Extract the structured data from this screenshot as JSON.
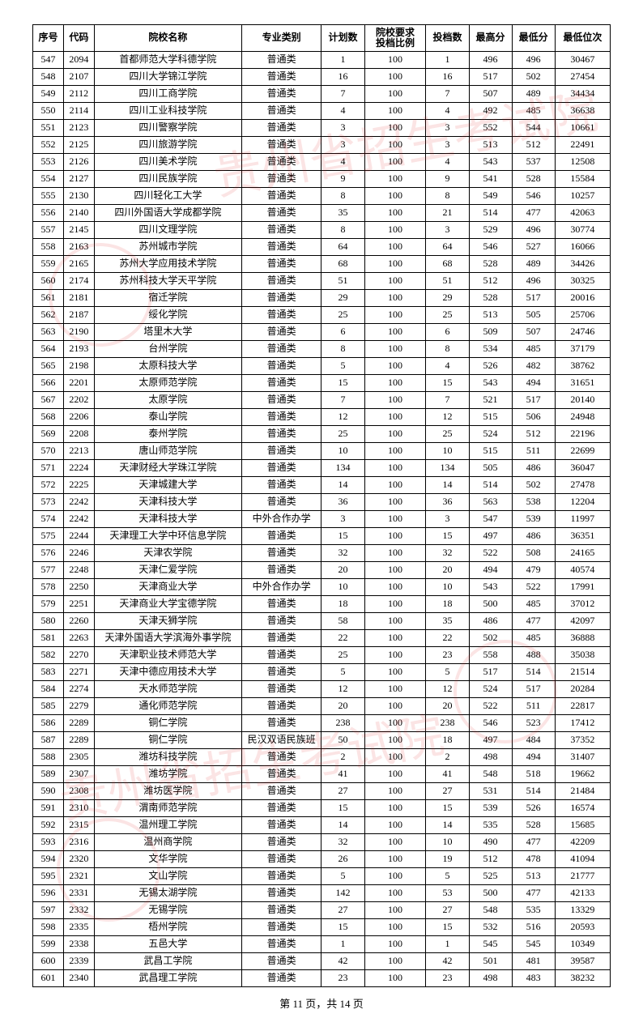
{
  "columns": [
    {
      "label": "序号",
      "width": "5%"
    },
    {
      "label": "代码",
      "width": "5%"
    },
    {
      "label": "院校名称",
      "width": "24%"
    },
    {
      "label": "专业类别",
      "width": "13%"
    },
    {
      "label": "计划数",
      "width": "7%"
    },
    {
      "label": "院校要求\n投档比例",
      "width": "10%"
    },
    {
      "label": "投档数",
      "width": "7%"
    },
    {
      "label": "最高分",
      "width": "7%"
    },
    {
      "label": "最低分",
      "width": "7%"
    },
    {
      "label": "最低位次",
      "width": "9%"
    }
  ],
  "rows": [
    [
      "547",
      "2094",
      "首都师范大学科德学院",
      "普通类",
      "1",
      "100",
      "1",
      "496",
      "496",
      "30467"
    ],
    [
      "548",
      "2107",
      "四川大学锦江学院",
      "普通类",
      "16",
      "100",
      "16",
      "517",
      "502",
      "27454"
    ],
    [
      "549",
      "2112",
      "四川工商学院",
      "普通类",
      "7",
      "100",
      "7",
      "507",
      "489",
      "34434"
    ],
    [
      "550",
      "2114",
      "四川工业科技学院",
      "普通类",
      "4",
      "100",
      "4",
      "492",
      "485",
      "36638"
    ],
    [
      "551",
      "2123",
      "四川警察学院",
      "普通类",
      "3",
      "100",
      "3",
      "552",
      "544",
      "10661"
    ],
    [
      "552",
      "2125",
      "四川旅游学院",
      "普通类",
      "3",
      "100",
      "3",
      "513",
      "512",
      "22491"
    ],
    [
      "553",
      "2126",
      "四川美术学院",
      "普通类",
      "4",
      "100",
      "4",
      "543",
      "537",
      "12508"
    ],
    [
      "554",
      "2127",
      "四川民族学院",
      "普通类",
      "9",
      "100",
      "9",
      "541",
      "528",
      "15584"
    ],
    [
      "555",
      "2130",
      "四川轻化工大学",
      "普通类",
      "8",
      "100",
      "8",
      "549",
      "546",
      "10257"
    ],
    [
      "556",
      "2140",
      "四川外国语大学成都学院",
      "普通类",
      "35",
      "100",
      "21",
      "514",
      "477",
      "42063"
    ],
    [
      "557",
      "2145",
      "四川文理学院",
      "普通类",
      "8",
      "100",
      "3",
      "529",
      "496",
      "30774"
    ],
    [
      "558",
      "2163",
      "苏州城市学院",
      "普通类",
      "64",
      "100",
      "64",
      "546",
      "527",
      "16066"
    ],
    [
      "559",
      "2165",
      "苏州大学应用技术学院",
      "普通类",
      "68",
      "100",
      "68",
      "528",
      "489",
      "34426"
    ],
    [
      "560",
      "2174",
      "苏州科技大学天平学院",
      "普通类",
      "51",
      "100",
      "51",
      "512",
      "496",
      "30325"
    ],
    [
      "561",
      "2181",
      "宿迁学院",
      "普通类",
      "29",
      "100",
      "29",
      "528",
      "517",
      "20016"
    ],
    [
      "562",
      "2187",
      "绥化学院",
      "普通类",
      "25",
      "100",
      "25",
      "513",
      "505",
      "25706"
    ],
    [
      "563",
      "2190",
      "塔里木大学",
      "普通类",
      "6",
      "100",
      "6",
      "509",
      "507",
      "24746"
    ],
    [
      "564",
      "2193",
      "台州学院",
      "普通类",
      "8",
      "100",
      "8",
      "534",
      "485",
      "37179"
    ],
    [
      "565",
      "2198",
      "太原科技大学",
      "普通类",
      "5",
      "100",
      "4",
      "526",
      "482",
      "38762"
    ],
    [
      "566",
      "2201",
      "太原师范学院",
      "普通类",
      "15",
      "100",
      "15",
      "543",
      "494",
      "31651"
    ],
    [
      "567",
      "2202",
      "太原学院",
      "普通类",
      "7",
      "100",
      "7",
      "521",
      "517",
      "20140"
    ],
    [
      "568",
      "2206",
      "泰山学院",
      "普通类",
      "12",
      "100",
      "12",
      "515",
      "506",
      "24948"
    ],
    [
      "569",
      "2208",
      "泰州学院",
      "普通类",
      "25",
      "100",
      "25",
      "524",
      "512",
      "22196"
    ],
    [
      "570",
      "2213",
      "唐山师范学院",
      "普通类",
      "10",
      "100",
      "10",
      "515",
      "511",
      "22699"
    ],
    [
      "571",
      "2224",
      "天津财经大学珠江学院",
      "普通类",
      "134",
      "100",
      "134",
      "505",
      "486",
      "36047"
    ],
    [
      "572",
      "2225",
      "天津城建大学",
      "普通类",
      "14",
      "100",
      "14",
      "514",
      "502",
      "27478"
    ],
    [
      "573",
      "2242",
      "天津科技大学",
      "普通类",
      "36",
      "100",
      "36",
      "563",
      "538",
      "12204"
    ],
    [
      "574",
      "2242",
      "天津科技大学",
      "中外合作办学",
      "3",
      "100",
      "3",
      "547",
      "539",
      "11997"
    ],
    [
      "575",
      "2244",
      "天津理工大学中环信息学院",
      "普通类",
      "15",
      "100",
      "15",
      "497",
      "486",
      "36351"
    ],
    [
      "576",
      "2246",
      "天津农学院",
      "普通类",
      "32",
      "100",
      "32",
      "522",
      "508",
      "24165"
    ],
    [
      "577",
      "2248",
      "天津仁爱学院",
      "普通类",
      "20",
      "100",
      "20",
      "494",
      "479",
      "40574"
    ],
    [
      "578",
      "2250",
      "天津商业大学",
      "中外合作办学",
      "10",
      "100",
      "10",
      "543",
      "522",
      "17991"
    ],
    [
      "579",
      "2251",
      "天津商业大学宝德学院",
      "普通类",
      "18",
      "100",
      "18",
      "500",
      "485",
      "37012"
    ],
    [
      "580",
      "2260",
      "天津天狮学院",
      "普通类",
      "58",
      "100",
      "35",
      "486",
      "477",
      "42097"
    ],
    [
      "581",
      "2263",
      "天津外国语大学滨海外事学院",
      "普通类",
      "22",
      "100",
      "22",
      "502",
      "485",
      "36888"
    ],
    [
      "582",
      "2270",
      "天津职业技术师范大学",
      "普通类",
      "25",
      "100",
      "23",
      "558",
      "488",
      "35038"
    ],
    [
      "583",
      "2271",
      "天津中德应用技术大学",
      "普通类",
      "5",
      "100",
      "5",
      "517",
      "514",
      "21514"
    ],
    [
      "584",
      "2274",
      "天水师范学院",
      "普通类",
      "12",
      "100",
      "12",
      "524",
      "517",
      "20284"
    ],
    [
      "585",
      "2279",
      "通化师范学院",
      "普通类",
      "20",
      "100",
      "20",
      "522",
      "511",
      "22817"
    ],
    [
      "586",
      "2289",
      "铜仁学院",
      "普通类",
      "238",
      "100",
      "238",
      "546",
      "523",
      "17412"
    ],
    [
      "587",
      "2289",
      "铜仁学院",
      "民汉双语民族班",
      "50",
      "100",
      "18",
      "497",
      "484",
      "37352"
    ],
    [
      "588",
      "2305",
      "潍坊科技学院",
      "普通类",
      "2",
      "100",
      "2",
      "498",
      "494",
      "31407"
    ],
    [
      "589",
      "2307",
      "潍坊学院",
      "普通类",
      "41",
      "100",
      "41",
      "548",
      "518",
      "19662"
    ],
    [
      "590",
      "2308",
      "潍坊医学院",
      "普通类",
      "27",
      "100",
      "27",
      "531",
      "514",
      "21484"
    ],
    [
      "591",
      "2310",
      "渭南师范学院",
      "普通类",
      "15",
      "100",
      "15",
      "539",
      "526",
      "16574"
    ],
    [
      "592",
      "2315",
      "温州理工学院",
      "普通类",
      "14",
      "100",
      "14",
      "535",
      "528",
      "15685"
    ],
    [
      "593",
      "2316",
      "温州商学院",
      "普通类",
      "32",
      "100",
      "10",
      "490",
      "477",
      "42209"
    ],
    [
      "594",
      "2320",
      "文华学院",
      "普通类",
      "26",
      "100",
      "19",
      "512",
      "478",
      "41094"
    ],
    [
      "595",
      "2321",
      "文山学院",
      "普通类",
      "5",
      "100",
      "5",
      "525",
      "513",
      "21777"
    ],
    [
      "596",
      "2331",
      "无锡太湖学院",
      "普通类",
      "142",
      "100",
      "53",
      "500",
      "477",
      "42133"
    ],
    [
      "597",
      "2332",
      "无锡学院",
      "普通类",
      "27",
      "100",
      "27",
      "548",
      "535",
      "13329"
    ],
    [
      "598",
      "2335",
      "梧州学院",
      "普通类",
      "15",
      "100",
      "15",
      "532",
      "516",
      "20593"
    ],
    [
      "599",
      "2338",
      "五邑大学",
      "普通类",
      "1",
      "100",
      "1",
      "545",
      "545",
      "10349"
    ],
    [
      "600",
      "2339",
      "武昌工学院",
      "普通类",
      "42",
      "100",
      "42",
      "501",
      "481",
      "39587"
    ],
    [
      "601",
      "2340",
      "武昌理工学院",
      "普通类",
      "23",
      "100",
      "23",
      "498",
      "483",
      "38232"
    ]
  ],
  "footer": "第 11 页，共 14 页",
  "watermark_text": "贵州省招生考试院"
}
